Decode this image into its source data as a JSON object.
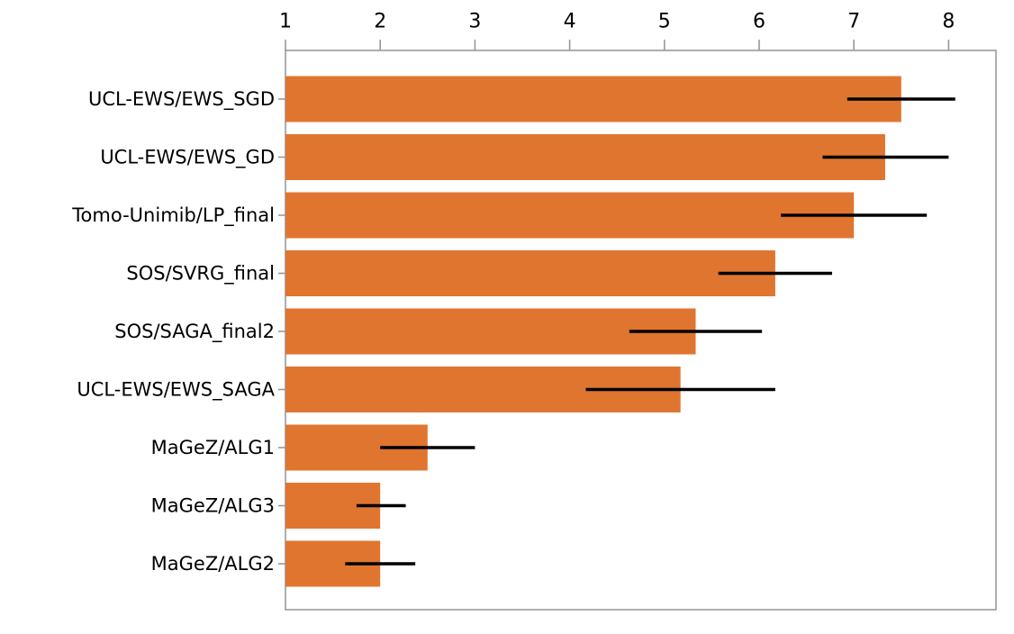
{
  "chart_data": {
    "type": "bar",
    "orientation": "horizontal",
    "title": "",
    "xlabel": "",
    "ylabel": "",
    "xlim": [
      1,
      8.5
    ],
    "x_ticks": [
      1,
      2,
      3,
      4,
      5,
      6,
      7,
      8
    ],
    "x_tick_labels": [
      "1",
      "2",
      "3",
      "4",
      "5",
      "6",
      "7",
      "8"
    ],
    "x_axis_position": "top",
    "grid": false,
    "bar_color": "#e07530",
    "error_color": "#000000",
    "categories": [
      "UCL-EWS/EWS_SGD",
      "UCL-EWS/EWS_GD",
      "Tomo-Unimib/LP_final",
      "SOS/SVRG_final",
      "SOS/SAGA_final2",
      "UCL-EWS/EWS_SAGA",
      "MaGeZ/ALG1",
      "MaGeZ/ALG3",
      "MaGeZ/ALG2"
    ],
    "values": [
      7.5,
      7.33,
      7.0,
      6.17,
      5.33,
      5.17,
      2.5,
      2.0,
      2.0
    ],
    "error_low": [
      6.93,
      6.67,
      6.23,
      5.57,
      4.63,
      4.17,
      2.0,
      1.75,
      1.63
    ],
    "error_high": [
      8.07,
      8.0,
      7.77,
      6.77,
      6.03,
      6.17,
      3.0,
      2.27,
      2.37
    ]
  }
}
